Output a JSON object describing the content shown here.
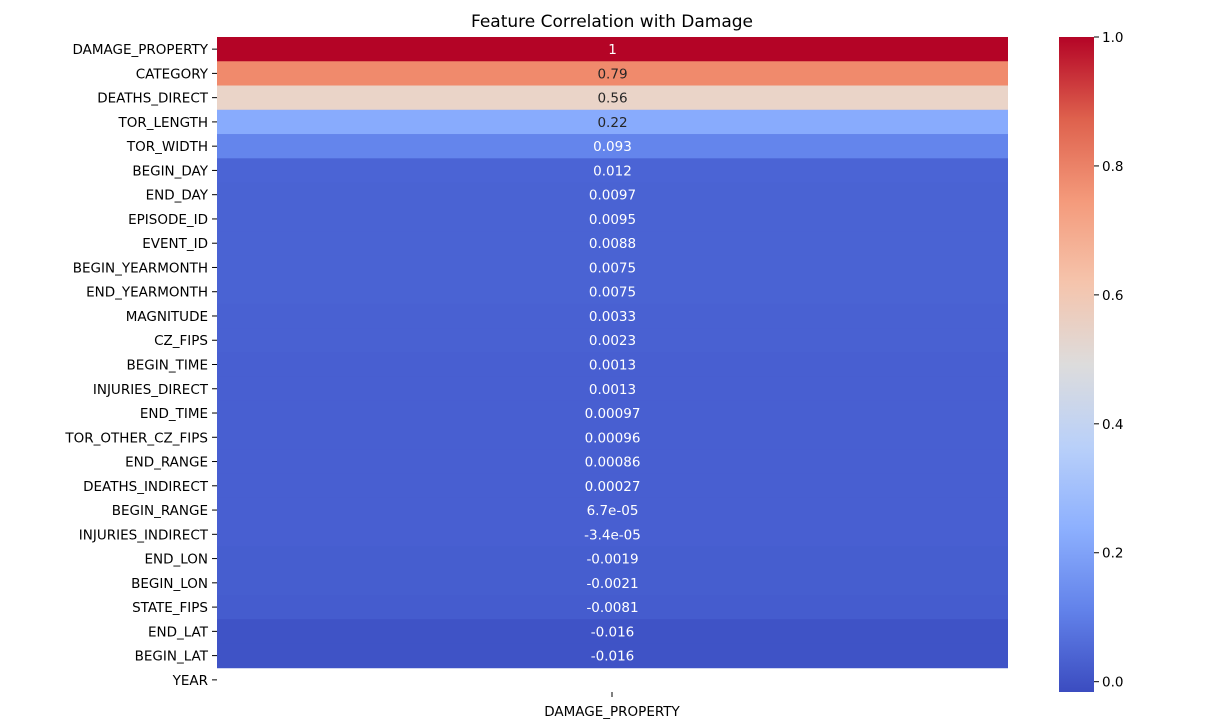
{
  "chart_data": {
    "type": "heatmap",
    "title": "Feature Correlation with Damage",
    "xlabel": "",
    "ylabel": "",
    "column": "DAMAGE_PROPERTY",
    "colormap": "coolwarm",
    "rows": [
      {
        "label": "DAMAGE_PROPERTY",
        "value": 1,
        "text": "1",
        "color": "#b40426"
      },
      {
        "label": "CATEGORY",
        "value": 0.79,
        "text": "0.79",
        "color": "#f08a6c"
      },
      {
        "label": "DEATHS_DIRECT",
        "value": 0.56,
        "text": "0.56",
        "color": "#ead4c8"
      },
      {
        "label": "TOR_LENGTH",
        "value": 0.22,
        "text": "0.22",
        "color": "#88abfd"
      },
      {
        "label": "TOR_WIDTH",
        "value": 0.093,
        "text": "0.093",
        "color": "#6485ec"
      },
      {
        "label": "BEGIN_DAY",
        "value": 0.012,
        "text": "0.012",
        "color": "#4b64d5"
      },
      {
        "label": "END_DAY",
        "value": 0.0097,
        "text": "0.0097",
        "color": "#4a63d3"
      },
      {
        "label": "EPISODE_ID",
        "value": 0.0095,
        "text": "0.0095",
        "color": "#4a63d3"
      },
      {
        "label": "EVENT_ID",
        "value": 0.0088,
        "text": "0.0088",
        "color": "#4a63d3"
      },
      {
        "label": "BEGIN_YEARMONTH",
        "value": 0.0075,
        "text": "0.0075",
        "color": "#4a63d3"
      },
      {
        "label": "END_YEARMONTH",
        "value": 0.0075,
        "text": "0.0075",
        "color": "#4a63d3"
      },
      {
        "label": "MAGNITUDE",
        "value": 0.0033,
        "text": "0.0033",
        "color": "#4961d2"
      },
      {
        "label": "CZ_FIPS",
        "value": 0.0023,
        "text": "0.0023",
        "color": "#4961d2"
      },
      {
        "label": "BEGIN_TIME",
        "value": 0.0013,
        "text": "0.0013",
        "color": "#485fd1"
      },
      {
        "label": "INJURIES_DIRECT",
        "value": 0.0013,
        "text": "0.0013",
        "color": "#485fd1"
      },
      {
        "label": "END_TIME",
        "value": 0.00097,
        "text": "0.00097",
        "color": "#485fd1"
      },
      {
        "label": "TOR_OTHER_CZ_FIPS",
        "value": 0.00096,
        "text": "0.00096",
        "color": "#485fd1"
      },
      {
        "label": "END_RANGE",
        "value": 0.00086,
        "text": "0.00086",
        "color": "#485fd1"
      },
      {
        "label": "DEATHS_INDIRECT",
        "value": 0.00027,
        "text": "0.00027",
        "color": "#485fd1"
      },
      {
        "label": "BEGIN_RANGE",
        "value": 6.7e-05,
        "text": "6.7e-05",
        "color": "#485fd1"
      },
      {
        "label": "INJURIES_INDIRECT",
        "value": -3.4e-05,
        "text": "-3.4e-05",
        "color": "#485fd1"
      },
      {
        "label": "END_LON",
        "value": -0.0019,
        "text": "-0.0019",
        "color": "#465ecf"
      },
      {
        "label": "BEGIN_LON",
        "value": -0.0021,
        "text": "-0.0021",
        "color": "#465ecf"
      },
      {
        "label": "STATE_FIPS",
        "value": -0.0081,
        "text": "-0.0081",
        "color": "#455cce"
      },
      {
        "label": "END_LAT",
        "value": -0.016,
        "text": "-0.016",
        "color": "#3f53c6"
      },
      {
        "label": "BEGIN_LAT",
        "value": -0.016,
        "text": "-0.016",
        "color": "#3f53c6"
      },
      {
        "label": "YEAR",
        "value": null,
        "text": "",
        "color": "#ffffff"
      }
    ],
    "colorbar": {
      "range": [
        -0.016,
        1.0
      ],
      "ticks": [
        {
          "value": 0.0,
          "label": "0.0"
        },
        {
          "value": 0.2,
          "label": "0.2"
        },
        {
          "value": 0.4,
          "label": "0.4"
        },
        {
          "value": 0.6,
          "label": "0.6"
        },
        {
          "value": 0.8,
          "label": "0.8"
        },
        {
          "value": 1.0,
          "label": "1.0"
        }
      ],
      "stops": [
        "#3b4cc0",
        "#6282ea",
        "#8db0fe",
        "#b9d0f9",
        "#dddcdc",
        "#f5c4ac",
        "#f49a7b",
        "#de614d",
        "#b40426"
      ]
    }
  }
}
